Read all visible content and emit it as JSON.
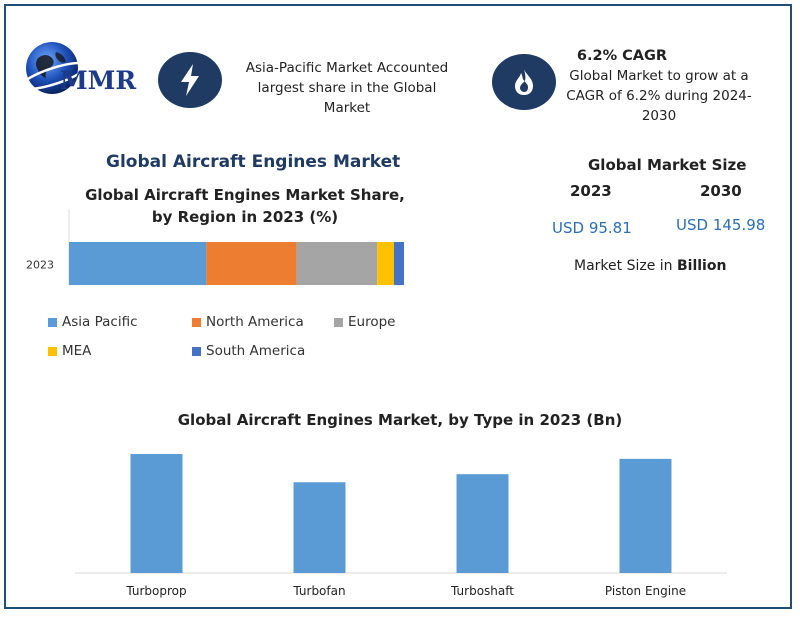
{
  "brand": {
    "logo_text": "MMR"
  },
  "info_left": {
    "icon": "lightning-icon",
    "text": "Asia-Pacific Market Accounted largest share in the Global Market"
  },
  "info_right": {
    "icon": "flame-icon",
    "title": "6.2% CAGR",
    "text": "Global Market to grow at a CAGR of 6.2% during 2024-2030"
  },
  "market_title": "Global Aircraft Engines Market",
  "market_size": {
    "title": "Global Market Size",
    "year_2023": "2023",
    "year_2030": "2030",
    "value_2023": "USD 95.81",
    "value_2030": "USD 145.98",
    "unit_prefix": "Market Size in ",
    "unit_bold": "Billion"
  },
  "colors": {
    "navy": "#1f3a63",
    "accent_blue": "#2a6fb5"
  },
  "chart_data": [
    {
      "type": "bar",
      "orientation": "horizontal",
      "stacked": true,
      "title": "Global Aircraft Engines Market Share, by Region in 2023 (%)",
      "categories": [
        "2023"
      ],
      "series": [
        {
          "name": "Asia Pacific",
          "values": [
            41
          ],
          "color": "#5b9bd5"
        },
        {
          "name": "North America",
          "values": [
            27
          ],
          "color": "#ed7d31"
        },
        {
          "name": "Europe",
          "values": [
            24
          ],
          "color": "#a5a5a5"
        },
        {
          "name": "MEA",
          "values": [
            5
          ],
          "color": "#ffc000"
        },
        {
          "name": "South America",
          "values": [
            3
          ],
          "color": "#4472c4"
        }
      ],
      "xlim": [
        0,
        100
      ],
      "legend": "bottom",
      "grid": false
    },
    {
      "type": "bar",
      "title": "Global Aircraft Engines Market, by Type in 2023 (Bn)",
      "categories": [
        "Turboprop",
        "Turbofan",
        "Turboshaft",
        "Piston Engine"
      ],
      "values": [
        29.5,
        22.5,
        24.5,
        28.3
      ],
      "ylim": [
        0,
        30
      ],
      "color": "#5b9bd5",
      "grid": false,
      "legend": "none"
    }
  ]
}
